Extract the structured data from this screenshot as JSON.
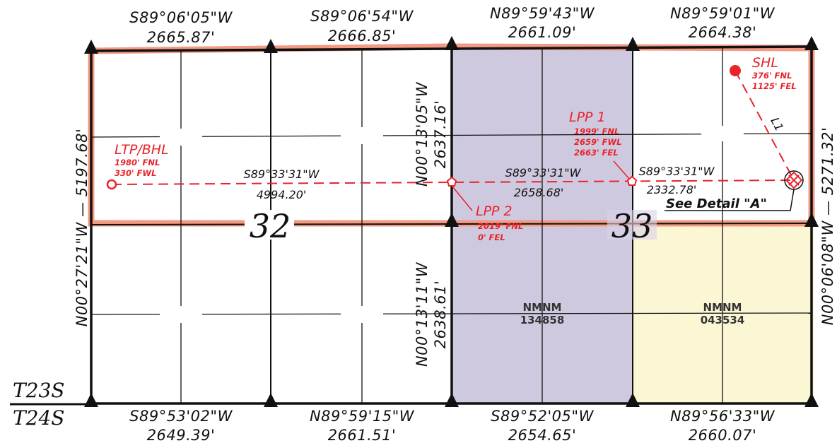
{
  "colors": {
    "lease_nmnm_134858": "#cfc9e0",
    "lease_nmnm_043534": "#fbf6d4",
    "project_area_outline": "#f29a84",
    "well_path": "#e8232a",
    "line": "#111111"
  },
  "top_calls": [
    {
      "bearing": "S89°06'05\"W",
      "distance": "2665.87'"
    },
    {
      "bearing": "S89°06'54\"W",
      "distance": "2666.85'"
    },
    {
      "bearing": "N89°59'43\"W",
      "distance": "2661.09'"
    },
    {
      "bearing": "N89°59'01\"W",
      "distance": "2664.38'"
    }
  ],
  "bottom_calls": [
    {
      "bearing": "S89°53'02\"W",
      "distance": "2649.39'"
    },
    {
      "bearing": "N89°59'15\"W",
      "distance": "2661.51'"
    },
    {
      "bearing": "S89°52'05\"W",
      "distance": "2654.65'"
    },
    {
      "bearing": "N89°56'33\"W",
      "distance": "2660.07'"
    }
  ],
  "left_call": "N00°27'21\"W — 5197.68'",
  "right_call": "N00°06'08\"W — 5271.32'",
  "middle_upper_call": {
    "bearing": "N00°13'05\"W",
    "distance": "2637.16'"
  },
  "middle_lower_call": {
    "bearing": "N00°13'11\"W",
    "distance": "2638.61'"
  },
  "sections": {
    "left": "32",
    "right": "33"
  },
  "township": {
    "north": "T23S",
    "south": "T24S"
  },
  "shl": {
    "title": "SHL",
    "line1": "376' FNL",
    "line2": "1125' FEL"
  },
  "ltp_bhl": {
    "title": "LTP/BHL",
    "line1": "1980' FNL",
    "line2": "330' FWL"
  },
  "lpp1": {
    "title": "LPP 1",
    "line1": "1999' FNL",
    "line2": "2659' FWL",
    "line3": "2663' FEL"
  },
  "lpp2": {
    "title": "LPP 2",
    "line1": "2019' FNL",
    "line2": "0' FEL"
  },
  "path_calls": [
    {
      "bearing": "S89°33'31\"W",
      "distance": "4994.20'"
    },
    {
      "bearing": "S89°33'31\"W",
      "distance": "2658.68'"
    },
    {
      "bearing": "S89°33'31\"W",
      "distance": "2332.78'"
    }
  ],
  "l1_label": "L1",
  "detail_label": "See Detail \"A\"",
  "leases": [
    {
      "name": "NMNM",
      "number": "134858"
    },
    {
      "name": "NMNM",
      "number": "043534"
    }
  ]
}
